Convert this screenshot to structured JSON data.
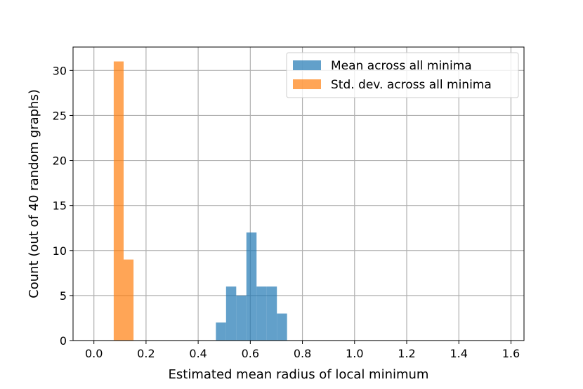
{
  "chart_data": {
    "type": "bar",
    "subtype": "histogram",
    "xlabel": "Estimated mean radius of local minimum",
    "ylabel": "Count (out of 40 random graphs)",
    "xlim": [
      -0.08,
      1.65
    ],
    "ylim": [
      0,
      32.6
    ],
    "xticks": [
      0.0,
      0.2,
      0.4,
      0.6,
      0.8,
      1.0,
      1.2,
      1.4,
      1.6
    ],
    "xtick_labels": [
      "0.0",
      "0.2",
      "0.4",
      "0.6",
      "0.8",
      "1.0",
      "1.2",
      "1.4",
      "1.6"
    ],
    "yticks": [
      0,
      5,
      10,
      15,
      20,
      25,
      30
    ],
    "ytick_labels": [
      "0",
      "5",
      "10",
      "15",
      "20",
      "25",
      "30"
    ],
    "grid": true,
    "legend_position": "top-right",
    "series": [
      {
        "name": "Mean across all minima",
        "color": "#1f77b4",
        "opacity": 0.7,
        "bin_edges": [
          0.468,
          0.507,
          0.546,
          0.585,
          0.624,
          0.663,
          0.702,
          0.741
        ],
        "counts": [
          2,
          6,
          5,
          12,
          6,
          6,
          3
        ]
      },
      {
        "name": "Std. dev. across all minima",
        "color": "#ff7f0e",
        "opacity": 0.7,
        "bin_edges": [
          0.076,
          0.114,
          0.152
        ],
        "counts": [
          31,
          9
        ]
      }
    ]
  }
}
